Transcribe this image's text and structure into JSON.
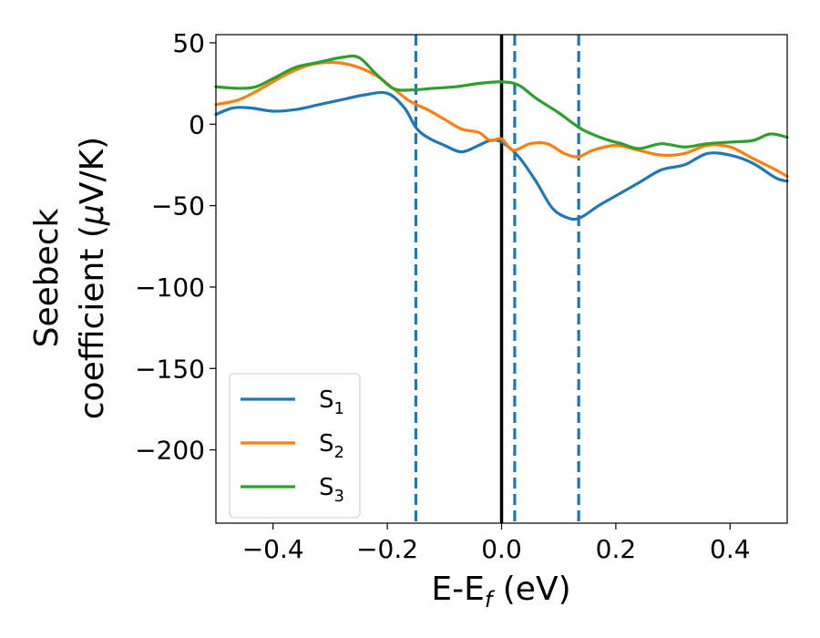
{
  "chart_data": {
    "type": "line",
    "title": "",
    "xlabel": {
      "main": "E-E",
      "sub": "f",
      "unit": " (eV)"
    },
    "ylabel": {
      "line1": "Seebeck",
      "line2_prefix": "coefficient  (",
      "mu": "μ",
      "line2_suffix": "V/K)"
    },
    "xlim": [
      -0.5,
      0.5
    ],
    "ylim": [
      -245,
      55
    ],
    "xticks": [
      -0.4,
      -0.2,
      0.0,
      0.2,
      0.4
    ],
    "xtick_labels": [
      "−0.4",
      "−0.2",
      "0.0",
      "0.2",
      "0.4"
    ],
    "yticks": [
      50,
      0,
      -50,
      -100,
      -150,
      -200
    ],
    "ytick_labels": [
      "50",
      "0",
      "−50",
      "−100",
      "−150",
      "−200"
    ],
    "grid": false,
    "legend_position": "lower-left",
    "vlines": [
      {
        "x": -0.15,
        "style": "dashed",
        "color": "#1f77b4"
      },
      {
        "x": 0.0,
        "style": "solid",
        "color": "#000000"
      },
      {
        "x": 0.023,
        "style": "dashed",
        "color": "#1f77b4"
      },
      {
        "x": 0.135,
        "style": "dashed",
        "color": "#1f77b4"
      }
    ],
    "series": [
      {
        "name": "S",
        "sub": "1",
        "color": "#1f77b4",
        "x": [
          -0.5,
          -0.47,
          -0.44,
          -0.4,
          -0.36,
          -0.32,
          -0.28,
          -0.24,
          -0.2,
          -0.17,
          -0.15,
          -0.13,
          -0.1,
          -0.07,
          -0.04,
          -0.02,
          0.0,
          0.03,
          0.06,
          0.09,
          0.12,
          0.14,
          0.17,
          0.2,
          0.24,
          0.28,
          0.32,
          0.36,
          0.4,
          0.44,
          0.48,
          0.5
        ],
        "y": [
          6,
          10,
          10,
          8,
          9,
          12,
          15,
          18,
          19,
          10,
          -2,
          -8,
          -13,
          -17,
          -13,
          -10,
          -11,
          -20,
          -35,
          -52,
          -58,
          -57,
          -50,
          -44,
          -36,
          -28,
          -25,
          -18,
          -19,
          -24,
          -33,
          -35
        ]
      },
      {
        "name": "S",
        "sub": "2",
        "color": "#ff7f0e",
        "x": [
          -0.5,
          -0.46,
          -0.42,
          -0.38,
          -0.34,
          -0.3,
          -0.26,
          -0.22,
          -0.19,
          -0.16,
          -0.13,
          -0.1,
          -0.07,
          -0.04,
          -0.02,
          0.0,
          0.02,
          0.05,
          0.08,
          0.11,
          0.135,
          0.16,
          0.2,
          0.24,
          0.28,
          0.32,
          0.36,
          0.4,
          0.44,
          0.48,
          0.5
        ],
        "y": [
          12,
          15,
          22,
          30,
          36,
          38,
          36,
          30,
          22,
          14,
          9,
          3,
          -3,
          -5,
          -10,
          -9,
          -16,
          -12,
          -12,
          -18,
          -20,
          -16,
          -13,
          -16,
          -19,
          -18,
          -13,
          -14,
          -21,
          -28,
          -32
        ]
      },
      {
        "name": "S",
        "sub": "3",
        "color": "#2ca02c",
        "x": [
          -0.5,
          -0.46,
          -0.43,
          -0.4,
          -0.36,
          -0.32,
          -0.28,
          -0.25,
          -0.22,
          -0.19,
          -0.16,
          -0.12,
          -0.08,
          -0.04,
          0.0,
          0.03,
          0.06,
          0.1,
          0.14,
          0.18,
          0.21,
          0.24,
          0.28,
          0.32,
          0.36,
          0.4,
          0.44,
          0.47,
          0.5
        ],
        "y": [
          23,
          22,
          23,
          28,
          35,
          38,
          41,
          41,
          31,
          22,
          21,
          22,
          23,
          25,
          26,
          24,
          16,
          7,
          -3,
          -9,
          -12,
          -15,
          -12,
          -14,
          -12,
          -11,
          -10,
          -6,
          -8
        ]
      }
    ]
  }
}
